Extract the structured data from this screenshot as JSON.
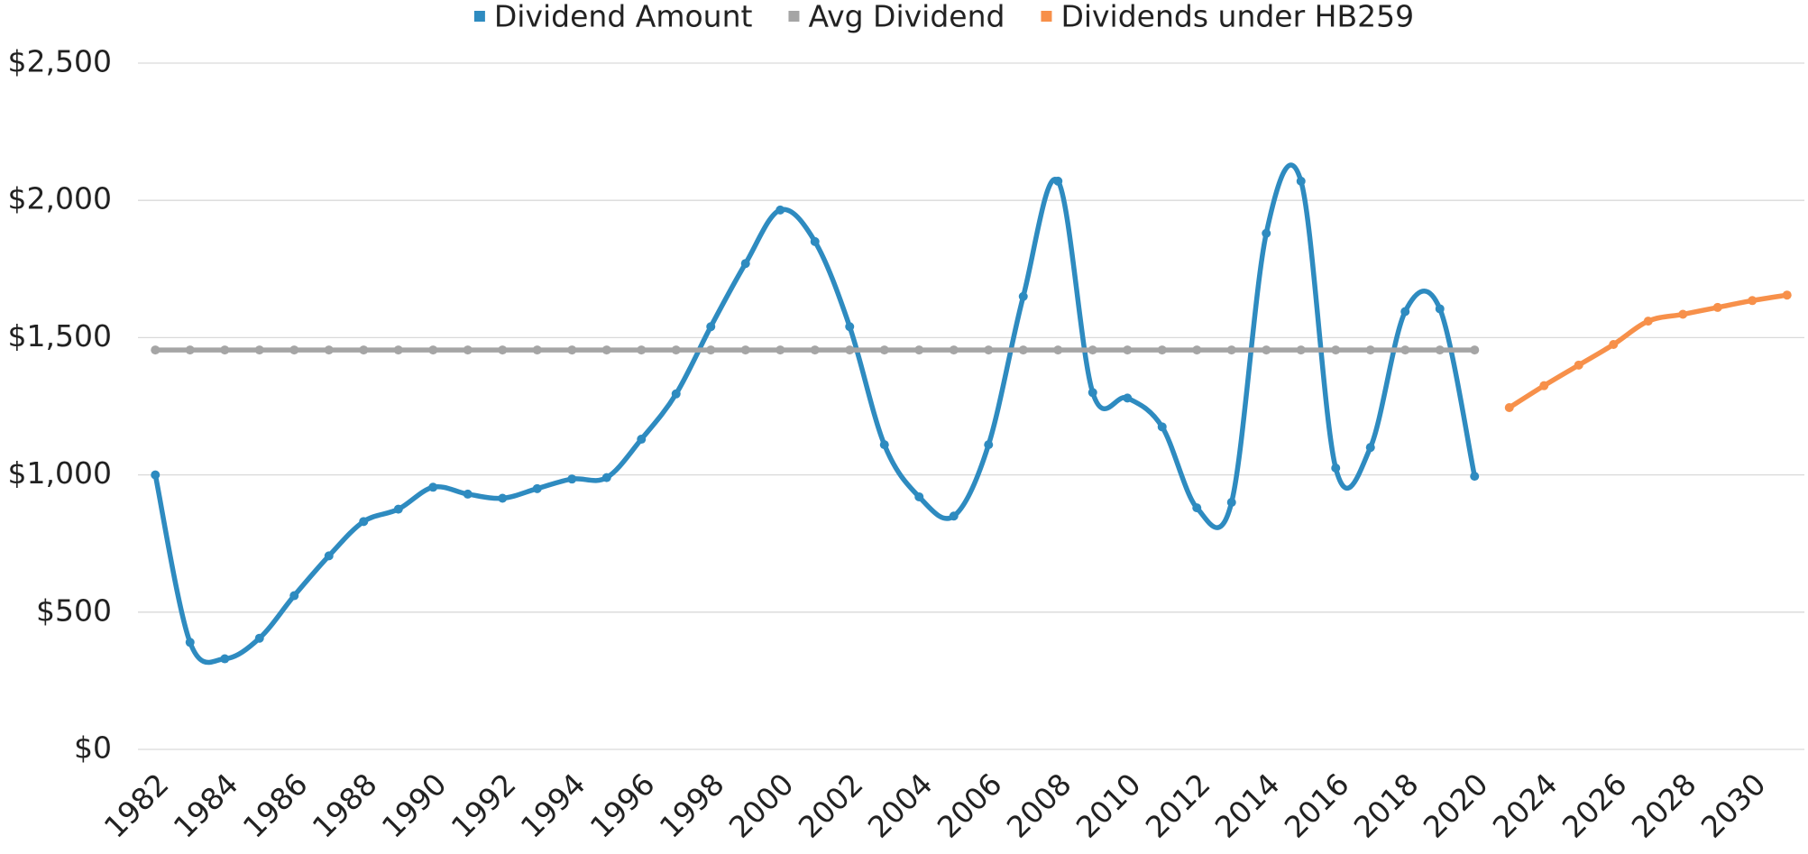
{
  "chart_data": {
    "type": "line",
    "categories": [
      "1982",
      null,
      "1984",
      null,
      "1986",
      null,
      "1988",
      null,
      "1990",
      null,
      "1992",
      null,
      "1994",
      null,
      "1996",
      null,
      "1998",
      null,
      "2000",
      null,
      "2002",
      null,
      "2004",
      null,
      "2006",
      null,
      "2008",
      null,
      "2010",
      null,
      "2012",
      null,
      "2014",
      null,
      "2016",
      null,
      "2018",
      null,
      "2020",
      null,
      "2024",
      null,
      "2026",
      null,
      "2028",
      null,
      "2030",
      null
    ],
    "series": [
      {
        "name": "Dividend Amount",
        "color": "#2e8bc0",
        "smooth": true,
        "values": [
          1000,
          390,
          330,
          405,
          560,
          705,
          830,
          875,
          955,
          930,
          915,
          950,
          985,
          990,
          1130,
          1295,
          1540,
          1770,
          1965,
          1850,
          1540,
          1110,
          920,
          850,
          1110,
          1650,
          2070,
          1300,
          1280,
          1175,
          880,
          900,
          1880,
          2070,
          1025,
          1100,
          1595,
          1605,
          995,
          null,
          null,
          null,
          null,
          null,
          null,
          null,
          null,
          null
        ]
      },
      {
        "name": "Avg Dividend",
        "color": "#a5a5a5",
        "smooth": false,
        "values": [
          1455,
          1455,
          1455,
          1455,
          1455,
          1455,
          1455,
          1455,
          1455,
          1455,
          1455,
          1455,
          1455,
          1455,
          1455,
          1455,
          1455,
          1455,
          1455,
          1455,
          1455,
          1455,
          1455,
          1455,
          1455,
          1455,
          1455,
          1455,
          1455,
          1455,
          1455,
          1455,
          1455,
          1455,
          1455,
          1455,
          1455,
          1455,
          1455,
          null,
          null,
          null,
          null,
          null,
          null,
          null,
          null,
          null
        ]
      },
      {
        "name": "Dividends under HB259",
        "color": "#f7904a",
        "smooth": true,
        "values": [
          null,
          null,
          null,
          null,
          null,
          null,
          null,
          null,
          null,
          null,
          null,
          null,
          null,
          null,
          null,
          null,
          null,
          null,
          null,
          null,
          null,
          null,
          null,
          null,
          null,
          null,
          null,
          null,
          null,
          null,
          null,
          null,
          null,
          null,
          null,
          null,
          null,
          null,
          null,
          1245,
          1325,
          1400,
          1475,
          1560,
          1585,
          1610,
          1635,
          1655
        ]
      }
    ],
    "ylim": [
      0,
      2500
    ],
    "yticks": [
      {
        "value": 0,
        "label": "$0"
      },
      {
        "value": 500,
        "label": "$500"
      },
      {
        "value": 1000,
        "label": "$1,000"
      },
      {
        "value": 1500,
        "label": "$1,500"
      },
      {
        "value": 2000,
        "label": "$2,000"
      },
      {
        "value": 2500,
        "label": "$2,500"
      }
    ],
    "grid": true,
    "legend": "top"
  }
}
